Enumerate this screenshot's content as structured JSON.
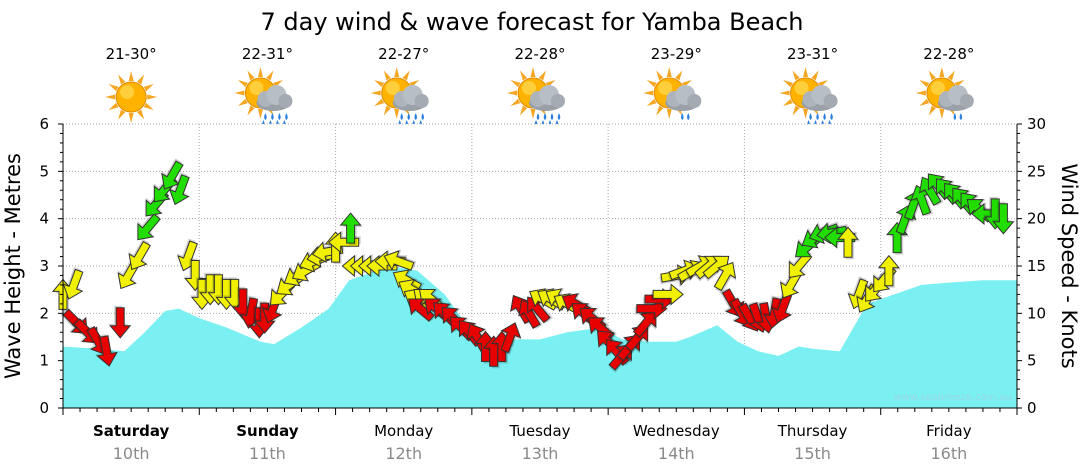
{
  "chart_data": {
    "type": "area",
    "title": "7 day wind & wave forecast for Yamba Beach",
    "ylabel_left": "Wave Height - Metres",
    "ylabel_right": "Wind Speed - Knots",
    "ylim_left": [
      0,
      6
    ],
    "ylim_right": [
      0,
      30
    ],
    "yticks_left": [
      "0",
      "1",
      "2",
      "3",
      "4",
      "5",
      "6"
    ],
    "yticks_right": [
      "0",
      "5",
      "10",
      "15",
      "20",
      "25",
      "30"
    ],
    "grid": true,
    "watermark": "www.seabreeze.com.au",
    "days": [
      {
        "day": "Saturday",
        "date": "10th",
        "temp": "21-30°",
        "icon": "sunny-icon",
        "bold": true
      },
      {
        "day": "Sunday",
        "date": "11th",
        "temp": "22-31°",
        "icon": "sun-cloud-rain-icon",
        "bold": true
      },
      {
        "day": "Monday",
        "date": "12th",
        "temp": "22-27°",
        "icon": "sun-cloud-rain-icon",
        "bold": false
      },
      {
        "day": "Tuesday",
        "date": "13th",
        "temp": "22-28°",
        "icon": "sun-cloud-rain-icon",
        "bold": false
      },
      {
        "day": "Wednesday",
        "date": "14th",
        "temp": "23-29°",
        "icon": "sun-cloud-shower-icon",
        "bold": false
      },
      {
        "day": "Thursday",
        "date": "15th",
        "temp": "23-31°",
        "icon": "sun-cloud-rain-icon",
        "bold": false
      },
      {
        "day": "Friday",
        "date": "16th",
        "temp": "22-28°",
        "icon": "sun-cloud-shower-icon",
        "bold": false
      }
    ],
    "wave_series": {
      "x_day": [
        0,
        0.25,
        0.45,
        0.6,
        0.75,
        0.85,
        1.0,
        1.2,
        1.45,
        1.55,
        1.75,
        1.95,
        2.1,
        2.4,
        2.6,
        2.8,
        3.0,
        3.1,
        3.3,
        3.5,
        3.7,
        3.95,
        4.1,
        4.3,
        4.5,
        4.6,
        4.8,
        4.95,
        5.1,
        5.25,
        5.4,
        5.5,
        5.7,
        5.9,
        6.0,
        6.3,
        6.5,
        6.75,
        7.0
      ],
      "height": [
        1.3,
        1.25,
        1.2,
        1.6,
        2.05,
        2.1,
        1.9,
        1.7,
        1.4,
        1.35,
        1.7,
        2.1,
        2.7,
        3.0,
        2.9,
        2.4,
        1.6,
        1.5,
        1.45,
        1.45,
        1.6,
        1.7,
        1.45,
        1.4,
        1.4,
        1.5,
        1.75,
        1.4,
        1.2,
        1.1,
        1.3,
        1.25,
        1.2,
        2.2,
        2.3,
        2.6,
        2.65,
        2.7,
        2.7
      ]
    },
    "wind_series": {
      "colors": {
        "strong": "#e60000",
        "moderate": "#f0f000",
        "light": "#22dd00"
      },
      "points": [
        {
          "t": 0.0,
          "knots": 12.0,
          "dir": 0,
          "c": "moderate"
        },
        {
          "t": 0.08,
          "knots": 13.0,
          "dir": 200,
          "c": "moderate"
        },
        {
          "t": 0.1,
          "knots": 9.0,
          "dir": 135,
          "c": "strong"
        },
        {
          "t": 0.18,
          "knots": 8.0,
          "dir": 135,
          "c": "strong"
        },
        {
          "t": 0.26,
          "knots": 7.0,
          "dir": 150,
          "c": "strong"
        },
        {
          "t": 0.32,
          "knots": 6.0,
          "dir": 170,
          "c": "strong"
        },
        {
          "t": 0.42,
          "knots": 9.0,
          "dir": 180,
          "c": "strong"
        },
        {
          "t": 0.48,
          "knots": 14.0,
          "dir": 210,
          "c": "moderate"
        },
        {
          "t": 0.56,
          "knots": 16.0,
          "dir": 210,
          "c": "moderate"
        },
        {
          "t": 0.62,
          "knots": 19.0,
          "dir": 220,
          "c": "light"
        },
        {
          "t": 0.68,
          "knots": 21.5,
          "dir": 220,
          "c": "light"
        },
        {
          "t": 0.74,
          "knots": 23.0,
          "dir": 220,
          "c": "light"
        },
        {
          "t": 0.8,
          "knots": 24.5,
          "dir": 210,
          "c": "light"
        },
        {
          "t": 0.86,
          "knots": 23.0,
          "dir": 200,
          "c": "light"
        },
        {
          "t": 0.92,
          "knots": 16.0,
          "dir": 200,
          "c": "moderate"
        },
        {
          "t": 0.97,
          "knots": 14.0,
          "dir": 180,
          "c": "moderate"
        },
        {
          "t": 1.02,
          "knots": 12.0,
          "dir": 180,
          "c": "moderate"
        },
        {
          "t": 1.08,
          "knots": 12.5,
          "dir": 180,
          "c": "moderate"
        },
        {
          "t": 1.14,
          "knots": 12.5,
          "dir": 180,
          "c": "moderate"
        },
        {
          "t": 1.2,
          "knots": 12.0,
          "dir": 180,
          "c": "moderate"
        },
        {
          "t": 1.26,
          "knots": 12.0,
          "dir": 180,
          "c": "moderate"
        },
        {
          "t": 1.32,
          "knots": 11.0,
          "dir": 180,
          "c": "strong"
        },
        {
          "t": 1.38,
          "knots": 10.0,
          "dir": 190,
          "c": "strong"
        },
        {
          "t": 1.44,
          "knots": 9.0,
          "dir": 180,
          "c": "strong"
        },
        {
          "t": 1.48,
          "knots": 9.5,
          "dir": 180,
          "c": "strong"
        },
        {
          "t": 1.54,
          "knots": 10.5,
          "dir": 200,
          "c": "strong"
        },
        {
          "t": 1.6,
          "knots": 12.0,
          "dir": 225,
          "c": "moderate"
        },
        {
          "t": 1.66,
          "knots": 13.0,
          "dir": 235,
          "c": "moderate"
        },
        {
          "t": 1.72,
          "knots": 14.0,
          "dir": 240,
          "c": "moderate"
        },
        {
          "t": 1.78,
          "knots": 14.5,
          "dir": 240,
          "c": "moderate"
        },
        {
          "t": 1.84,
          "knots": 15.5,
          "dir": 250,
          "c": "moderate"
        },
        {
          "t": 1.9,
          "knots": 16.0,
          "dir": 260,
          "c": "moderate"
        },
        {
          "t": 1.94,
          "knots": 16.5,
          "dir": 260,
          "c": "moderate"
        },
        {
          "t": 2.0,
          "knots": 17.0,
          "dir": 0,
          "c": "moderate"
        },
        {
          "t": 2.06,
          "knots": 17.5,
          "dir": 270,
          "c": "moderate"
        },
        {
          "t": 2.11,
          "knots": 19.0,
          "dir": 0,
          "c": "light"
        },
        {
          "t": 2.16,
          "knots": 15.0,
          "dir": 270,
          "c": "moderate"
        },
        {
          "t": 2.22,
          "knots": 15.0,
          "dir": 270,
          "c": "moderate"
        },
        {
          "t": 2.28,
          "knots": 15.0,
          "dir": 270,
          "c": "moderate"
        },
        {
          "t": 2.34,
          "knots": 15.0,
          "dir": 270,
          "c": "moderate"
        },
        {
          "t": 2.4,
          "knots": 15.5,
          "dir": 270,
          "c": "moderate"
        },
        {
          "t": 2.46,
          "knots": 15.5,
          "dir": 290,
          "c": "moderate"
        },
        {
          "t": 2.52,
          "knots": 13.5,
          "dir": 300,
          "c": "moderate"
        },
        {
          "t": 2.56,
          "knots": 12.5,
          "dir": 300,
          "c": "moderate"
        },
        {
          "t": 2.6,
          "knots": 11.5,
          "dir": 300,
          "c": "moderate"
        },
        {
          "t": 2.66,
          "knots": 11.5,
          "dir": 310,
          "c": "moderate"
        },
        {
          "t": 2.7,
          "knots": 11.5,
          "dir": 310,
          "c": "moderate"
        },
        {
          "t": 2.62,
          "knots": 10.5,
          "dir": 310,
          "c": "strong"
        },
        {
          "t": 2.74,
          "knots": 10.5,
          "dir": 310,
          "c": "strong"
        },
        {
          "t": 2.8,
          "knots": 10.0,
          "dir": 315,
          "c": "strong"
        },
        {
          "t": 2.86,
          "knots": 9.5,
          "dir": 315,
          "c": "strong"
        },
        {
          "t": 2.92,
          "knots": 8.5,
          "dir": 315,
          "c": "strong"
        },
        {
          "t": 2.98,
          "knots": 8.0,
          "dir": 320,
          "c": "strong"
        },
        {
          "t": 3.04,
          "knots": 7.5,
          "dir": 330,
          "c": "strong"
        },
        {
          "t": 3.1,
          "knots": 6.5,
          "dir": 0,
          "c": "strong"
        },
        {
          "t": 3.16,
          "knots": 6.0,
          "dir": 0,
          "c": "strong"
        },
        {
          "t": 3.22,
          "knots": 6.5,
          "dir": 0,
          "c": "strong"
        },
        {
          "t": 3.28,
          "knots": 7.5,
          "dir": 20,
          "c": "strong"
        },
        {
          "t": 3.36,
          "knots": 10.5,
          "dir": 330,
          "c": "strong"
        },
        {
          "t": 3.42,
          "knots": 10.0,
          "dir": 330,
          "c": "strong"
        },
        {
          "t": 3.48,
          "knots": 10.5,
          "dir": 320,
          "c": "strong"
        },
        {
          "t": 3.52,
          "knots": 11.5,
          "dir": 300,
          "c": "moderate"
        },
        {
          "t": 3.58,
          "knots": 11.5,
          "dir": 300,
          "c": "moderate"
        },
        {
          "t": 3.64,
          "knots": 11.5,
          "dir": 300,
          "c": "moderate"
        },
        {
          "t": 3.7,
          "knots": 11.0,
          "dir": 300,
          "c": "moderate"
        },
        {
          "t": 3.76,
          "knots": 11.0,
          "dir": 300,
          "c": "strong"
        },
        {
          "t": 3.82,
          "knots": 10.0,
          "dir": 310,
          "c": "strong"
        },
        {
          "t": 3.88,
          "knots": 9.5,
          "dir": 310,
          "c": "strong"
        },
        {
          "t": 3.94,
          "knots": 8.5,
          "dir": 310,
          "c": "strong"
        },
        {
          "t": 4.0,
          "knots": 7.0,
          "dir": 315,
          "c": "strong"
        },
        {
          "t": 4.06,
          "knots": 6.0,
          "dir": 320,
          "c": "strong"
        },
        {
          "t": 4.1,
          "knots": 5.5,
          "dir": 40,
          "c": "strong"
        },
        {
          "t": 4.16,
          "knots": 6.5,
          "dir": 40,
          "c": "strong"
        },
        {
          "t": 4.22,
          "knots": 7.5,
          "dir": 40,
          "c": "strong"
        },
        {
          "t": 4.28,
          "knots": 9.0,
          "dir": 40,
          "c": "strong"
        },
        {
          "t": 4.32,
          "knots": 10.5,
          "dir": 90,
          "c": "strong"
        },
        {
          "t": 4.38,
          "knots": 11.5,
          "dir": 90,
          "c": "strong"
        },
        {
          "t": 4.44,
          "knots": 12.0,
          "dir": 90,
          "c": "moderate"
        },
        {
          "t": 4.5,
          "knots": 14.0,
          "dir": 80,
          "c": "moderate"
        },
        {
          "t": 4.56,
          "knots": 14.5,
          "dir": 70,
          "c": "moderate"
        },
        {
          "t": 4.62,
          "knots": 14.5,
          "dir": 60,
          "c": "moderate"
        },
        {
          "t": 4.68,
          "knots": 15.0,
          "dir": 60,
          "c": "moderate"
        },
        {
          "t": 4.74,
          "knots": 15.0,
          "dir": 50,
          "c": "moderate"
        },
        {
          "t": 4.8,
          "knots": 15.0,
          "dir": 50,
          "c": "moderate"
        },
        {
          "t": 4.86,
          "knots": 14.0,
          "dir": 30,
          "c": "moderate"
        },
        {
          "t": 4.92,
          "knots": 11.0,
          "dir": 150,
          "c": "strong"
        },
        {
          "t": 4.98,
          "knots": 10.0,
          "dir": 150,
          "c": "strong"
        },
        {
          "t": 5.04,
          "knots": 9.5,
          "dir": 150,
          "c": "strong"
        },
        {
          "t": 5.1,
          "knots": 9.5,
          "dir": 160,
          "c": "strong"
        },
        {
          "t": 5.16,
          "knots": 9.5,
          "dir": 170,
          "c": "strong"
        },
        {
          "t": 5.22,
          "knots": 10.0,
          "dir": 190,
          "c": "strong"
        },
        {
          "t": 5.28,
          "knots": 10.5,
          "dir": 200,
          "c": "strong"
        },
        {
          "t": 5.34,
          "knots": 13.0,
          "dir": 210,
          "c": "moderate"
        },
        {
          "t": 5.4,
          "knots": 15.0,
          "dir": 220,
          "c": "moderate"
        },
        {
          "t": 5.46,
          "knots": 17.0,
          "dir": 230,
          "c": "light"
        },
        {
          "t": 5.52,
          "knots": 18.0,
          "dir": 240,
          "c": "light"
        },
        {
          "t": 5.58,
          "knots": 18.5,
          "dir": 250,
          "c": "light"
        },
        {
          "t": 5.64,
          "knots": 18.5,
          "dir": 260,
          "c": "light"
        },
        {
          "t": 5.7,
          "knots": 18.0,
          "dir": 270,
          "c": "light"
        },
        {
          "t": 5.76,
          "knots": 17.5,
          "dir": 0,
          "c": "moderate"
        },
        {
          "t": 5.84,
          "knots": 12.0,
          "dir": 200,
          "c": "moderate"
        },
        {
          "t": 5.9,
          "knots": 11.5,
          "dir": 210,
          "c": "moderate"
        },
        {
          "t": 5.96,
          "knots": 12.5,
          "dir": 220,
          "c": "moderate"
        },
        {
          "t": 6.02,
          "knots": 13.5,
          "dir": 220,
          "c": "moderate"
        },
        {
          "t": 6.06,
          "knots": 14.5,
          "dir": 0,
          "c": "moderate"
        },
        {
          "t": 6.12,
          "knots": 18.0,
          "dir": 0,
          "c": "light"
        },
        {
          "t": 6.18,
          "knots": 20.0,
          "dir": 20,
          "c": "light"
        },
        {
          "t": 6.24,
          "knots": 21.5,
          "dir": 20,
          "c": "light"
        },
        {
          "t": 6.3,
          "knots": 22.0,
          "dir": 340,
          "c": "light"
        },
        {
          "t": 6.36,
          "knots": 23.0,
          "dir": 330,
          "c": "light"
        },
        {
          "t": 6.42,
          "knots": 23.5,
          "dir": 320,
          "c": "light"
        },
        {
          "t": 6.48,
          "knots": 23.0,
          "dir": 320,
          "c": "light"
        },
        {
          "t": 6.54,
          "knots": 22.5,
          "dir": 320,
          "c": "light"
        },
        {
          "t": 6.6,
          "knots": 22.0,
          "dir": 320,
          "c": "light"
        },
        {
          "t": 6.66,
          "knots": 21.5,
          "dir": 320,
          "c": "light"
        },
        {
          "t": 6.72,
          "knots": 21.0,
          "dir": 310,
          "c": "light"
        },
        {
          "t": 6.78,
          "knots": 20.5,
          "dir": 270,
          "c": "light"
        },
        {
          "t": 6.84,
          "knots": 20.5,
          "dir": 180,
          "c": "light"
        },
        {
          "t": 6.9,
          "knots": 20.0,
          "dir": 180,
          "c": "light"
        }
      ]
    }
  }
}
